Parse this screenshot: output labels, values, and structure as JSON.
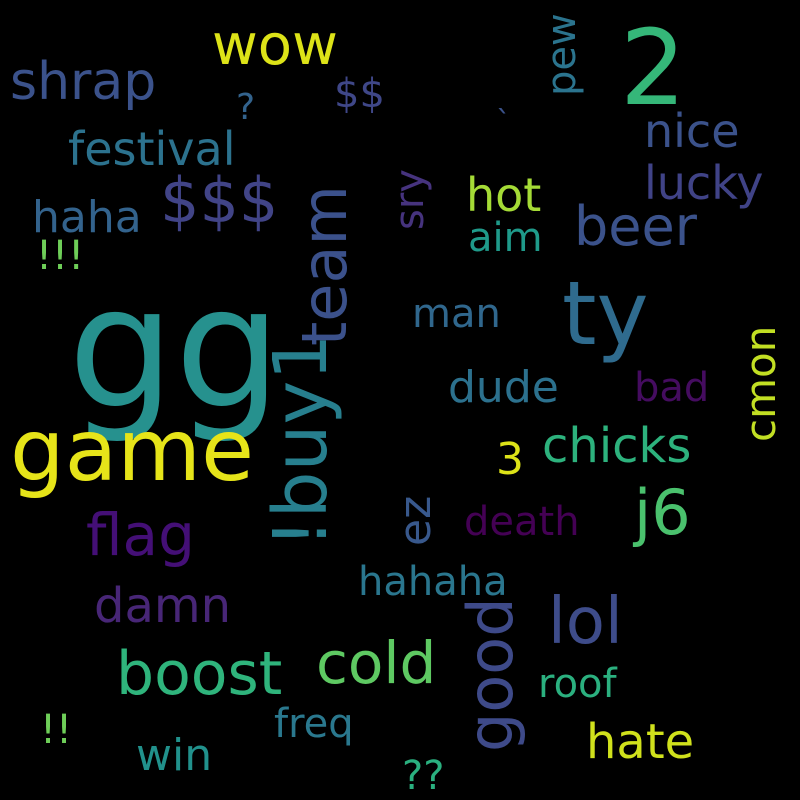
{
  "words": [
    {
      "text": "gg",
      "color": "#26918e"
    },
    {
      "text": "game",
      "color": "#e6e419"
    },
    {
      "text": "2",
      "color": "#35b779"
    },
    {
      "text": "ty",
      "color": "#2f6b8e"
    },
    {
      "text": "!buy1",
      "color": "#277f8e"
    },
    {
      "text": "team",
      "color": "#3b518b"
    },
    {
      "text": "$$$",
      "color": "#414487"
    },
    {
      "text": "boost",
      "color": "#2fb47c"
    },
    {
      "text": "cold",
      "color": "#5ec962"
    },
    {
      "text": "good",
      "color": "#3e4a89"
    },
    {
      "text": "lol",
      "color": "#3e4c8a"
    },
    {
      "text": "j6",
      "color": "#4ac16d"
    },
    {
      "text": "flag",
      "color": "#440f76"
    },
    {
      "text": "wow",
      "color": "#dde318"
    },
    {
      "text": "shrap",
      "color": "#3b528b"
    },
    {
      "text": "beer",
      "color": "#3b528b"
    },
    {
      "text": "chicks",
      "color": "#2db27d"
    },
    {
      "text": "hate",
      "color": "#d0e11c"
    },
    {
      "text": "damn",
      "color": "#482677"
    },
    {
      "text": "festival",
      "color": "#2c728e"
    },
    {
      "text": "hot",
      "color": "#a5db36"
    },
    {
      "text": "nice",
      "color": "#3b528b"
    },
    {
      "text": "lucky",
      "color": "#404387"
    },
    {
      "text": "haha",
      "color": "#33638d"
    },
    {
      "text": "dude",
      "color": "#2c718e"
    },
    {
      "text": "win",
      "color": "#21918c"
    },
    {
      "text": "hahaha",
      "color": "#2a768e"
    },
    {
      "text": "ez",
      "color": "#38588c"
    },
    {
      "text": "death",
      "color": "#440154"
    },
    {
      "text": "aim",
      "color": "#1f9a8a"
    },
    {
      "text": "man",
      "color": "#30678d"
    },
    {
      "text": "bad",
      "color": "#450c60"
    },
    {
      "text": "cmon",
      "color": "#c2df23"
    },
    {
      "text": "freq",
      "color": "#2a788e"
    },
    {
      "text": "roof",
      "color": "#2bb07f"
    },
    {
      "text": "pew",
      "color": "#2b748e"
    },
    {
      "text": "sry",
      "color": "#46337e"
    },
    {
      "text": "$$",
      "color": "#3f4788"
    },
    {
      "text": "?",
      "color": "#33638d"
    },
    {
      "text": "!!!",
      "color": "#6ece58"
    },
    {
      "text": "!!",
      "color": "#6ece58"
    },
    {
      "text": "??",
      "color": "#2ab07f"
    },
    {
      "text": "3",
      "color": "#dde318"
    },
    {
      "text": "`",
      "color": "#3b528b"
    }
  ]
}
